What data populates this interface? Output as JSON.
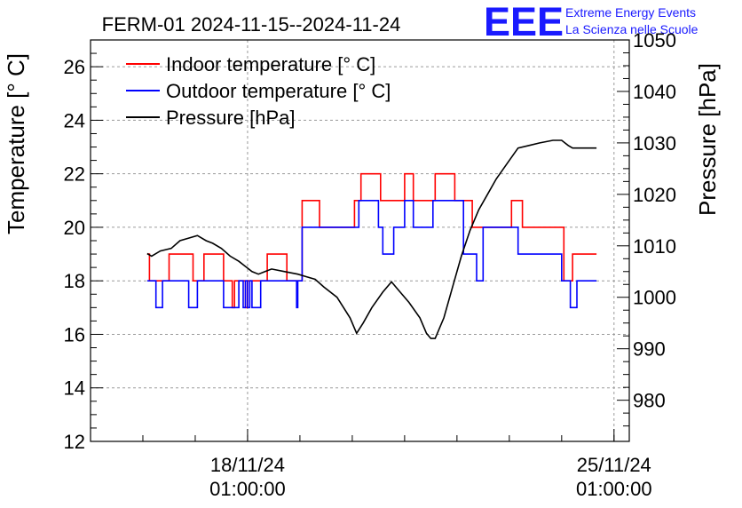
{
  "title": "FERM-01 2024-11-15--2024-11-24",
  "logo": {
    "text": "EEE",
    "line1": "Extreme Energy Events",
    "line2": "La Scienza nelle Scuole",
    "color": "#1a1aff"
  },
  "chart_data": {
    "type": "line",
    "xlabel": "",
    "ylabel_left": "Temperature [° C]",
    "ylabel_right": "Pressure [hPa]",
    "ylim_left": [
      12,
      27
    ],
    "ylim_right": [
      972,
      1050
    ],
    "yticks_left": [
      12,
      14,
      16,
      18,
      20,
      22,
      24,
      26
    ],
    "yticks_right": [
      980,
      990,
      1000,
      1010,
      1020,
      1030,
      1040,
      1050
    ],
    "xlim": [
      "2024-11-15 01:00",
      "2024-11-25 08:00"
    ],
    "xticks": [
      {
        "x": "2024-11-18 01:00",
        "date": "18/11/24",
        "time": "01:00:00"
      },
      {
        "x": "2024-11-25 01:00",
        "date": "25/11/24",
        "time": "01:00:00"
      }
    ],
    "grid": true,
    "legend_position": "top-left",
    "series": [
      {
        "name": "Indoor temperature [° C]",
        "axis": "left",
        "color": "#ff0000",
        "points": [
          [
            "2024-11-16 03:00",
            19
          ],
          [
            "2024-11-16 04:00",
            18
          ],
          [
            "2024-11-16 12:00",
            18
          ],
          [
            "2024-11-16 13:00",
            19
          ],
          [
            "2024-11-16 23:00",
            19
          ],
          [
            "2024-11-17 00:00",
            18
          ],
          [
            "2024-11-17 04:00",
            18
          ],
          [
            "2024-11-17 05:00",
            19
          ],
          [
            "2024-11-17 13:00",
            19
          ],
          [
            "2024-11-17 14:00",
            18
          ],
          [
            "2024-11-17 17:00",
            18
          ],
          [
            "2024-11-17 18:00",
            17
          ],
          [
            "2024-11-17 19:00",
            18
          ],
          [
            "2024-11-17 23:00",
            18
          ],
          [
            "2024-11-18 00:00",
            17
          ],
          [
            "2024-11-18 01:00",
            18
          ],
          [
            "2024-11-18 09:00",
            18
          ],
          [
            "2024-11-18 10:00",
            19
          ],
          [
            "2024-11-18 18:00",
            19
          ],
          [
            "2024-11-18 19:00",
            18
          ],
          [
            "2024-11-19 01:00",
            18
          ],
          [
            "2024-11-19 02:00",
            21
          ],
          [
            "2024-11-19 09:00",
            21
          ],
          [
            "2024-11-19 10:00",
            20
          ],
          [
            "2024-11-20 01:00",
            20
          ],
          [
            "2024-11-20 02:00",
            21
          ],
          [
            "2024-11-20 04:00",
            21
          ],
          [
            "2024-11-20 05:00",
            22
          ],
          [
            "2024-11-20 13:00",
            22
          ],
          [
            "2024-11-20 14:00",
            21
          ],
          [
            "2024-11-21 00:00",
            21
          ],
          [
            "2024-11-21 01:00",
            22
          ],
          [
            "2024-11-21 04:00",
            22
          ],
          [
            "2024-11-21 05:00",
            21
          ],
          [
            "2024-11-21 14:00",
            21
          ],
          [
            "2024-11-21 15:00",
            22
          ],
          [
            "2024-11-21 23:00",
            22
          ],
          [
            "2024-11-22 00:00",
            21
          ],
          [
            "2024-11-22 07:00",
            21
          ],
          [
            "2024-11-22 08:00",
            20
          ],
          [
            "2024-11-23 01:00",
            20
          ],
          [
            "2024-11-23 02:00",
            21
          ],
          [
            "2024-11-23 06:00",
            21
          ],
          [
            "2024-11-23 07:00",
            20
          ],
          [
            "2024-11-24 00:00",
            20
          ],
          [
            "2024-11-24 02:00",
            18
          ],
          [
            "2024-11-24 05:00",
            18
          ],
          [
            "2024-11-24 06:00",
            19
          ],
          [
            "2024-11-24 17:00",
            19
          ]
        ]
      },
      {
        "name": "Outdoor temperature [° C]",
        "axis": "left",
        "color": "#0000ff",
        "points": [
          [
            "2024-11-16 03:00",
            18
          ],
          [
            "2024-11-16 06:00",
            18
          ],
          [
            "2024-11-16 07:00",
            17
          ],
          [
            "2024-11-16 09:00",
            17
          ],
          [
            "2024-11-16 10:00",
            18
          ],
          [
            "2024-11-16 21:00",
            18
          ],
          [
            "2024-11-16 22:00",
            17
          ],
          [
            "2024-11-17 01:00",
            17
          ],
          [
            "2024-11-17 02:00",
            18
          ],
          [
            "2024-11-17 13:00",
            18
          ],
          [
            "2024-11-17 14:00",
            17
          ],
          [
            "2024-11-17 20:00",
            17
          ],
          [
            "2024-11-17 21:00",
            18
          ],
          [
            "2024-11-17 22:00",
            18
          ],
          [
            "2024-11-17 23:00",
            17
          ],
          [
            "2024-11-18 00:00",
            18
          ],
          [
            "2024-11-18 01:00",
            17
          ],
          [
            "2024-11-18 02:00",
            18
          ],
          [
            "2024-11-18 03:00",
            17
          ],
          [
            "2024-11-18 06:00",
            17
          ],
          [
            "2024-11-18 07:00",
            18
          ],
          [
            "2024-11-18 23:00",
            18
          ],
          [
            "2024-11-18 23:30",
            17
          ],
          [
            "2024-11-19 00:00",
            18
          ],
          [
            "2024-11-19 01:00",
            18
          ],
          [
            "2024-11-19 02:00",
            20
          ],
          [
            "2024-11-20 03:00",
            20
          ],
          [
            "2024-11-20 04:00",
            21
          ],
          [
            "2024-11-20 12:00",
            21
          ],
          [
            "2024-11-20 13:00",
            20
          ],
          [
            "2024-11-20 14:00",
            20
          ],
          [
            "2024-11-20 15:00",
            19
          ],
          [
            "2024-11-20 19:00",
            19
          ],
          [
            "2024-11-20 20:00",
            20
          ],
          [
            "2024-11-21 00:00",
            20
          ],
          [
            "2024-11-21 01:00",
            21
          ],
          [
            "2024-11-21 04:00",
            21
          ],
          [
            "2024-11-21 05:00",
            20
          ],
          [
            "2024-11-21 13:00",
            20
          ],
          [
            "2024-11-21 14:00",
            21
          ],
          [
            "2024-11-22 03:00",
            21
          ],
          [
            "2024-11-22 04:00",
            19
          ],
          [
            "2024-11-22 09:00",
            19
          ],
          [
            "2024-11-22 10:00",
            18
          ],
          [
            "2024-11-22 12:00",
            18
          ],
          [
            "2024-11-22 13:00",
            20
          ],
          [
            "2024-11-23 04:00",
            20
          ],
          [
            "2024-11-23 05:00",
            19
          ],
          [
            "2024-11-24 00:00",
            19
          ],
          [
            "2024-11-24 01:00",
            18
          ],
          [
            "2024-11-24 04:00",
            18
          ],
          [
            "2024-11-24 05:00",
            17
          ],
          [
            "2024-11-24 07:00",
            17
          ],
          [
            "2024-11-24 08:00",
            18
          ],
          [
            "2024-11-24 17:00",
            18
          ]
        ]
      },
      {
        "name": "Pressure [hPa]",
        "axis": "right",
        "color": "#000000",
        "points": [
          [
            "2024-11-16 03:00",
            1008.5
          ],
          [
            "2024-11-16 05:00",
            1008
          ],
          [
            "2024-11-16 09:00",
            1009
          ],
          [
            "2024-11-16 14:00",
            1009.5
          ],
          [
            "2024-11-16 18:00",
            1011
          ],
          [
            "2024-11-16 22:00",
            1011.5
          ],
          [
            "2024-11-17 02:00",
            1012
          ],
          [
            "2024-11-17 06:00",
            1011
          ],
          [
            "2024-11-17 09:00",
            1010.5
          ],
          [
            "2024-11-17 13:00",
            1009.5
          ],
          [
            "2024-11-17 17:00",
            1008
          ],
          [
            "2024-11-17 21:00",
            1007
          ],
          [
            "2024-11-18 00:00",
            1006
          ],
          [
            "2024-11-18 03:00",
            1005
          ],
          [
            "2024-11-18 06:00",
            1004.5
          ],
          [
            "2024-11-18 09:00",
            1005
          ],
          [
            "2024-11-18 12:00",
            1005.5
          ],
          [
            "2024-11-18 18:00",
            1005
          ],
          [
            "2024-11-19 00:00",
            1004.5
          ],
          [
            "2024-11-19 04:00",
            1004
          ],
          [
            "2024-11-19 08:00",
            1003.5
          ],
          [
            "2024-11-19 12:00",
            1002
          ],
          [
            "2024-11-19 18:00",
            1000
          ],
          [
            "2024-11-20 00:00",
            996
          ],
          [
            "2024-11-20 03:00",
            993
          ],
          [
            "2024-11-20 06:00",
            995
          ],
          [
            "2024-11-20 10:00",
            998
          ],
          [
            "2024-11-20 15:00",
            1001
          ],
          [
            "2024-11-20 19:00",
            1003
          ],
          [
            "2024-11-20 22:00",
            1001.5
          ],
          [
            "2024-11-21 03:00",
            999
          ],
          [
            "2024-11-21 08:00",
            996
          ],
          [
            "2024-11-21 11:00",
            993
          ],
          [
            "2024-11-21 13:00",
            992
          ],
          [
            "2024-11-21 15:00",
            992
          ],
          [
            "2024-11-21 19:00",
            996
          ],
          [
            "2024-11-21 23:00",
            1002
          ],
          [
            "2024-11-22 03:00",
            1008
          ],
          [
            "2024-11-22 07:00",
            1013
          ],
          [
            "2024-11-22 11:00",
            1017
          ],
          [
            "2024-11-22 15:00",
            1020
          ],
          [
            "2024-11-22 19:00",
            1023
          ],
          [
            "2024-11-23 00:00",
            1026
          ],
          [
            "2024-11-23 05:00",
            1029
          ],
          [
            "2024-11-23 10:00",
            1029.5
          ],
          [
            "2024-11-23 15:00",
            1030
          ],
          [
            "2024-11-23 21:00",
            1030.5
          ],
          [
            "2024-11-24 01:00",
            1030.5
          ],
          [
            "2024-11-24 04:00",
            1029.5
          ],
          [
            "2024-11-24 06:00",
            1029
          ],
          [
            "2024-11-24 17:00",
            1029
          ]
        ]
      }
    ]
  }
}
